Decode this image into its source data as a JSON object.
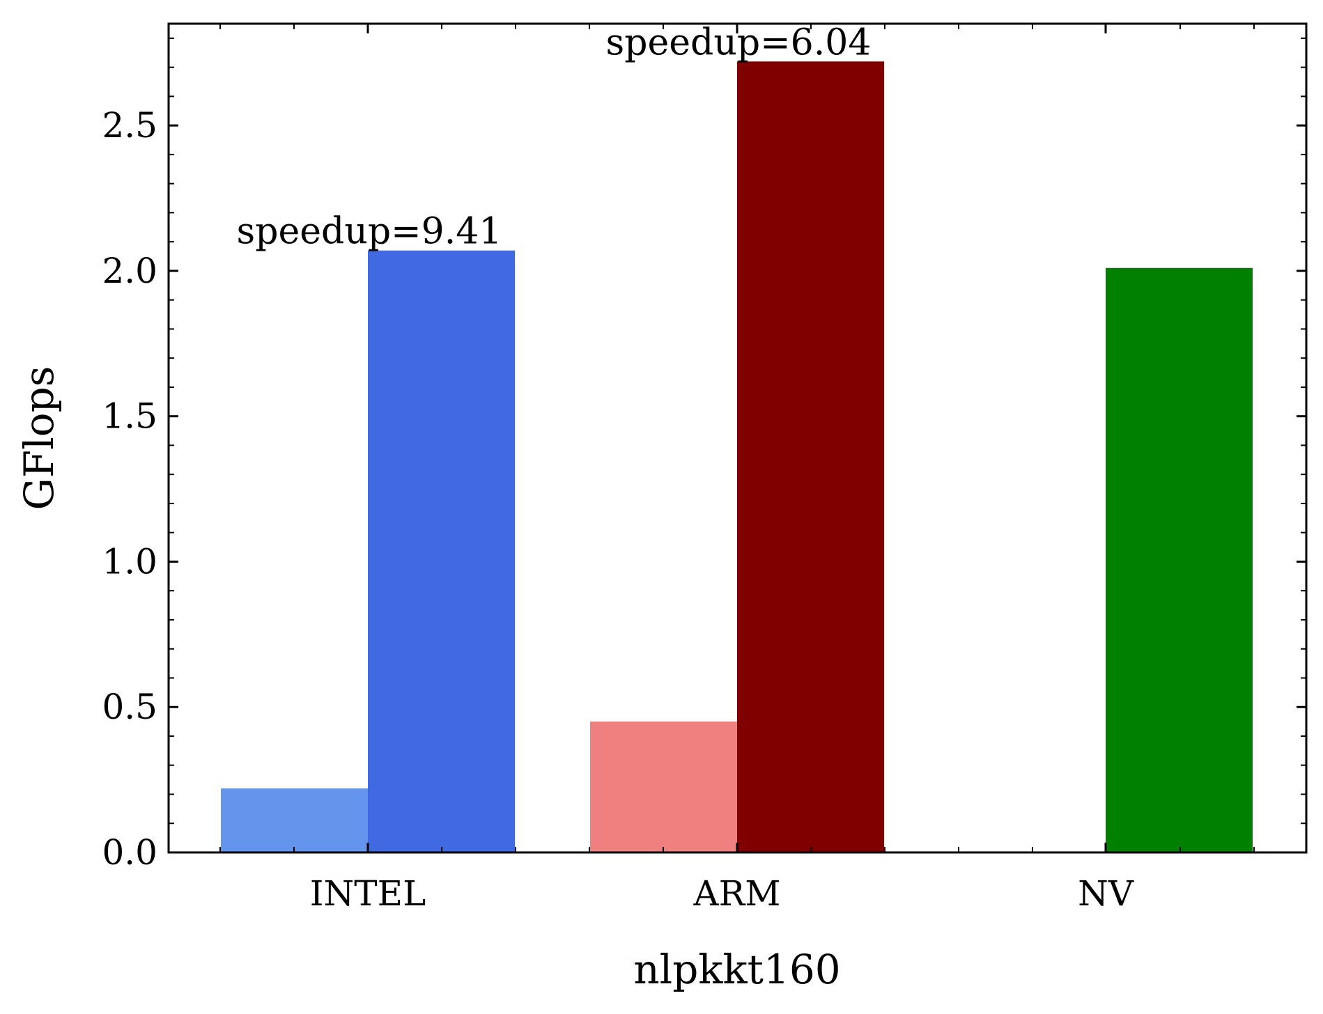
{
  "chart_data": {
    "type": "bar",
    "xlabel": "nlpkkt160",
    "ylabel": "GFlops",
    "ylim": [
      0,
      2.85
    ],
    "yticks": [
      "0.0",
      "0.5",
      "1.0",
      "1.5",
      "2.0",
      "2.5"
    ],
    "categories": [
      "INTEL",
      "ARM",
      "NV"
    ],
    "bars": [
      {
        "category": "INTEL",
        "slot": 0,
        "value": 0.22,
        "color": "#6495ED"
      },
      {
        "category": "INTEL",
        "slot": 1,
        "value": 2.07,
        "color": "#4169E1"
      },
      {
        "category": "ARM",
        "slot": 0,
        "value": 0.45,
        "color": "#F08080"
      },
      {
        "category": "ARM",
        "slot": 1,
        "value": 2.72,
        "color": "#800000"
      },
      {
        "category": "NV",
        "slot": 1,
        "value": 2.01,
        "color": "#008000"
      }
    ],
    "annotations": [
      {
        "category": "INTEL",
        "text": "speedup=9.41",
        "value": 2.07
      },
      {
        "category": "ARM",
        "text": "speedup=6.04",
        "value": 2.72
      }
    ],
    "grid": false
  }
}
